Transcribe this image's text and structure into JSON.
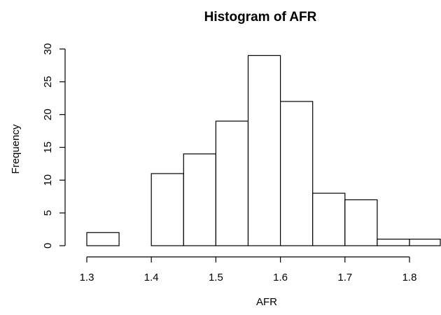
{
  "chart_data": {
    "type": "bar",
    "title": "Histogram of AFR",
    "xlabel": "AFR",
    "ylabel": "Frequency",
    "bin_edges": [
      1.3,
      1.35,
      1.4,
      1.45,
      1.5,
      1.55,
      1.6,
      1.65,
      1.7,
      1.75,
      1.8,
      1.85
    ],
    "values": [
      2,
      0,
      11,
      14,
      19,
      29,
      22,
      8,
      7,
      1,
      1
    ],
    "x_ticks": [
      1.3,
      1.4,
      1.5,
      1.6,
      1.7,
      1.8
    ],
    "x_tick_labels": [
      "1.3",
      "1.4",
      "1.5",
      "1.6",
      "1.7",
      "1.8"
    ],
    "y_ticks": [
      0,
      5,
      10,
      15,
      20,
      25,
      30
    ],
    "y_tick_labels": [
      "0",
      "5",
      "10",
      "15",
      "20",
      "25",
      "30"
    ],
    "xlim": [
      1.3,
      1.85
    ],
    "ylim": [
      0,
      30
    ],
    "grid": false,
    "legend": "none",
    "bar_fill": "#ffffff",
    "bar_stroke": "#000000"
  }
}
